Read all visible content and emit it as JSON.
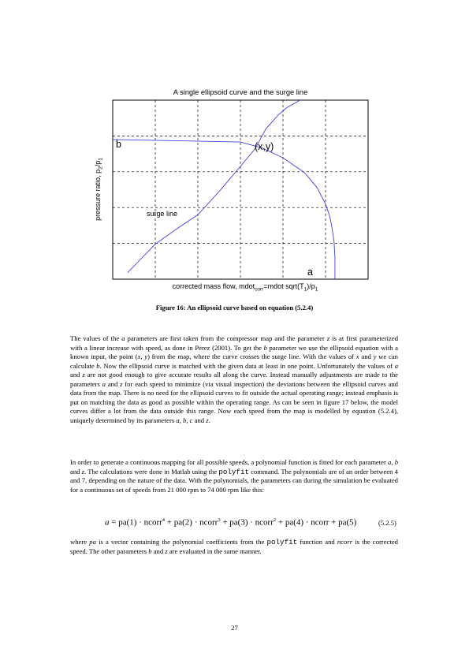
{
  "figure": {
    "title": "A single ellipsoid curve and the surge line",
    "ylabel_parts": [
      "pressure ratio, p",
      "2",
      "/p",
      "1"
    ],
    "xlabel_parts": [
      "corrected mass flow, mdot",
      "corr",
      "=mdot sqrt(T",
      "1",
      ")/p",
      "1"
    ],
    "annotations": {
      "b": "b",
      "xy": "(x,y)",
      "surge": "surge line",
      "a": "a"
    },
    "grid": "dashed, 6 x 5",
    "ticks": "none",
    "line_color": "#4040e0"
  },
  "chart_data": {
    "type": "line",
    "title": "A single ellipsoid curve and the surge line",
    "xlabel": "corrected mass flow, mdotcorr=mdot sqrt(T1)/p1",
    "ylabel": "pressure ratio, p2/p1",
    "xlim": [
      0,
      6
    ],
    "ylim": [
      0,
      5
    ],
    "grid": true,
    "series": [
      {
        "x": [
          0.0,
          3.0,
          3.5,
          4.0,
          4.5,
          4.8,
          5.0,
          5.1,
          5.15,
          5.2,
          5.22,
          5.22
        ],
        "y": [
          3.9,
          3.83,
          3.67,
          3.39,
          2.98,
          2.56,
          2.1,
          1.75,
          1.45,
          1.05,
          0.6,
          0.0
        ]
      },
      {
        "name": "surge line",
        "x": [
          0.35,
          0.65,
          1.0,
          1.5,
          2.0,
          2.5,
          3.0,
          3.35,
          3.6,
          3.9,
          4.1,
          4.4
        ],
        "y": [
          0.18,
          0.55,
          0.98,
          1.4,
          1.8,
          2.45,
          3.15,
          3.65,
          4.2,
          4.6,
          4.8,
          5.0
        ]
      }
    ]
  },
  "caption": "Figure 16: An ellipsoid curve based on equation (5.2.4)",
  "paragraph1": [
    "The values of the ",
    "a",
    " parameters are first taken from the compressor map and the parameter ",
    "z",
    " is at first parameterized with a linear increase with speed, as done in Perez (2001). To get the ",
    "b",
    " parameter we use the ellipsoid equation with a known input, the point (",
    "x, y",
    ") from the map, where the curve crosses the surge line. With the values of ",
    "x",
    " and ",
    "y",
    " we can calculate ",
    "b",
    ". Now the ellipsoid curve is matched with the given data at least in one point. Unfortunately the values of ",
    "a",
    " and ",
    "z",
    " are not good enough to give accurate results all along the curve. Instead manually adjustments are made to the parameters ",
    "a",
    " and ",
    "z",
    " for each speed to minimize (via visual inspection) the deviations between the ellipsoid curves and data from the map. There is no need for the ellipsoid curves to fit outside the actual operating range; instead emphasis is put on matching the data as good as possible within the operating range. As can be seen in figure 17 below, the model curves differ a lot from the data outside this range. Now each speed from the map is modelled by equation (5.2.4), uniquely determined by its parameters ",
    "a",
    ", ",
    "b",
    ", ",
    "c",
    " and ",
    "z",
    "."
  ],
  "paragraph2": [
    "In order to generate a continuous mapping for all possible speeds, a polynomial function is fitted for each parameter ",
    "a",
    ", ",
    "b",
    " and ",
    "z",
    ". The calculations were done in Matlab using the ",
    "polyfit",
    " command. The polynomials are of an order between 4 and 7, depending on the nature of the data. With the polynomials, the parameters can during the simulation be evaluated for a continuous set of speeds from 21 000 rpm to 74 000 rpm like this:"
  ],
  "equation": {
    "parts": [
      "a",
      " = pa(1) · ncorr",
      "4",
      " + pa(2) · ncorr",
      "3",
      " + pa(3) · ncorr",
      "2",
      " + pa(4) · ncorr + pa(5)"
    ],
    "number": "(5.2.5)"
  },
  "paragraph3": [
    "where ",
    "pa",
    " is a vector containing the polynomial coefficients from the ",
    "polyfit",
    " function and ",
    "ncorr",
    " is the corrected speed. The other parameters ",
    "b",
    " and ",
    "z",
    " are evaluated in the same manner."
  ],
  "page_number": "27"
}
